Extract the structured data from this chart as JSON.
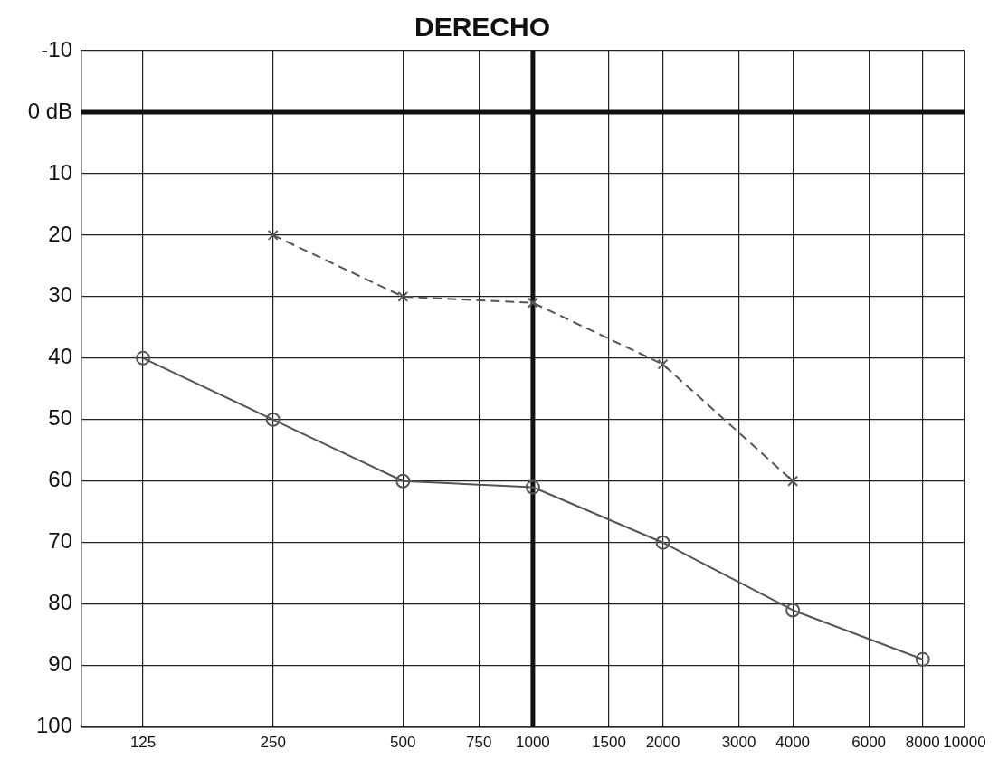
{
  "chart_data": {
    "type": "line",
    "title": "DERECHO",
    "log": "x",
    "xlim": [
      90,
      10000
    ],
    "ylim": [
      100,
      -10
    ],
    "xticks": [
      125,
      250,
      500,
      750,
      1000,
      1500,
      2000,
      3000,
      4000,
      6000,
      8000,
      10000
    ],
    "yticks": [
      -10,
      {
        "value": 0,
        "label": "0 dB"
      },
      10,
      20,
      30,
      40,
      50,
      60,
      70,
      80,
      90,
      100
    ],
    "grid": true,
    "legend": false,
    "ref_lines": [
      {
        "axis": "y",
        "value": 0,
        "color": "#111111"
      },
      {
        "axis": "x",
        "value": 1000,
        "color": "#111111"
      }
    ],
    "series": [
      {
        "color": "#555555",
        "marker": "circle",
        "line_style": "solid",
        "x": [
          125,
          250,
          500,
          1000,
          2000,
          4000,
          8000
        ],
        "values": [
          40,
          50,
          60,
          61,
          70,
          81,
          89
        ]
      },
      {
        "color": "#555555",
        "marker": "cross",
        "line_style": "dashed",
        "x": [
          250,
          500,
          1000,
          2000,
          4000
        ],
        "values": [
          20,
          30,
          31,
          41,
          60
        ]
      }
    ]
  }
}
